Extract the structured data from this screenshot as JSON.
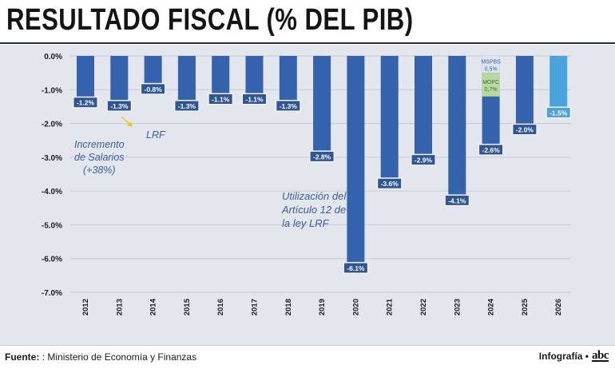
{
  "title": "RESULTADO FISCAL (% DEL PIB)",
  "footer": {
    "source_label": "Fuente:",
    "source_text": ": Ministerio de Economía y Finanzas",
    "credit_label": "Infografía •",
    "logo_text": "abc"
  },
  "annotations": {
    "salarios": "Incremento\nde Salarios\n(+38%)",
    "lrf": "LRF",
    "articulo": "Utilización del\nArtículo 12 de\nla ley LRF"
  },
  "chart_data": {
    "type": "bar",
    "categories": [
      "2012",
      "2013",
      "2014",
      "2015",
      "2016",
      "2017",
      "2018",
      "2019",
      "2020",
      "2021",
      "2022",
      "2023",
      "2024",
      "2025",
      "2026"
    ],
    "values": [
      -1.2,
      -1.3,
      -0.8,
      -1.3,
      -1.1,
      -1.1,
      -1.3,
      -2.8,
      -6.1,
      -3.6,
      -2.9,
      -4.1,
      -2.6,
      -2.0,
      -1.5
    ],
    "value_labels": [
      "-1.2%",
      "-1.3%",
      "-0.8%",
      "-1.3%",
      "-1.1%",
      "-1.1%",
      "-1.3%",
      "-2.8%",
      "-6.1%",
      "-3.6%",
      "-2.9%",
      "-4.1%",
      "-2.6%",
      "-2.0%",
      "-1.5%"
    ],
    "ylim": [
      -7.0,
      0.0
    ],
    "yticks": [
      0,
      -1,
      -2,
      -3,
      -4,
      -5,
      -6,
      -7
    ],
    "ytick_labels": [
      "0.0%",
      "-1.0%",
      "-2.0%",
      "-3.0%",
      "-4.0%",
      "-5.0%",
      "-6.0%",
      "-7.0%"
    ],
    "colors": {
      "bar": "#3562ad",
      "projected": "#4aa3dc",
      "label_bg": "#2f5597",
      "label_text": "#ffffff",
      "grid": "#c5cbd6"
    },
    "projected_categories": [
      "2026"
    ],
    "breakdown_2024": [
      {
        "name": "MSPBS",
        "value_label": "0,5%",
        "value": -0.5,
        "color": "#dde4f2",
        "text_color": "#3b5fa0"
      },
      {
        "name": "MOPC",
        "value_label": "0,7%",
        "value": -0.7,
        "color": "#b8d8a0",
        "text_color": "#3b6e2e"
      }
    ],
    "grid": true,
    "xlabel": "",
    "ylabel": ""
  }
}
